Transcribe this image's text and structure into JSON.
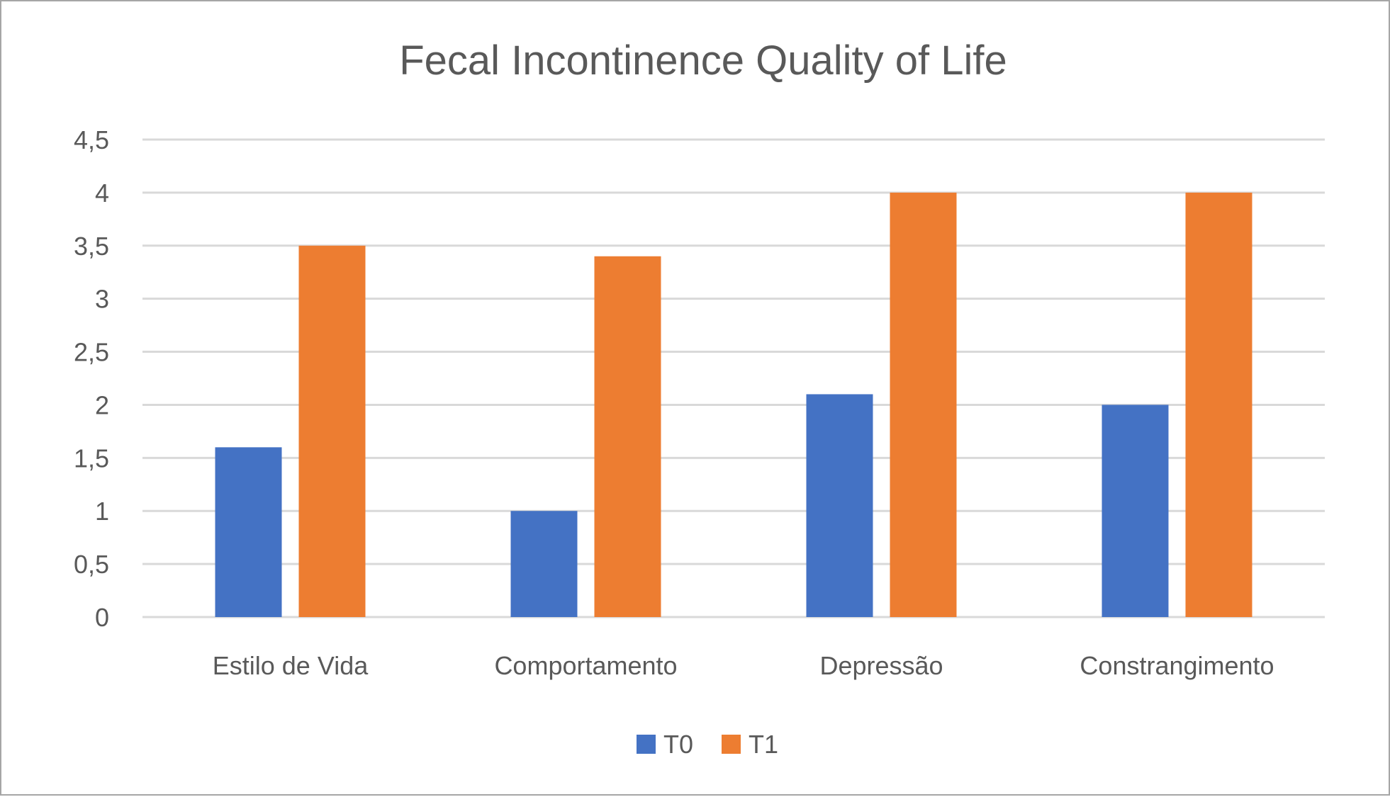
{
  "chart_data": {
    "type": "bar",
    "title": "Fecal Incontinence Quality of Life",
    "xlabel": "",
    "ylabel": "",
    "categories": [
      "Estilo de Vida",
      "Comportamento",
      "Depressão",
      "Constrangimento"
    ],
    "series": [
      {
        "name": "T0",
        "color": "#4472c4",
        "values": [
          1.6,
          1.0,
          2.1,
          2.0
        ]
      },
      {
        "name": "T1",
        "color": "#ed7d31",
        "values": [
          3.5,
          3.4,
          4.0,
          4.0
        ]
      }
    ],
    "ylim": [
      0,
      4.5
    ],
    "yticks": [
      0,
      0.5,
      1,
      1.5,
      2,
      2.5,
      3,
      3.5,
      4,
      4.5
    ],
    "ytick_labels": [
      "0",
      "0,5",
      "1",
      "1,5",
      "2",
      "2,5",
      "3",
      "3,5",
      "4",
      "4,5"
    ],
    "grid": true,
    "gridline_color": "#d9d9d9",
    "legend_position": "bottom",
    "text_color": "#595959"
  }
}
